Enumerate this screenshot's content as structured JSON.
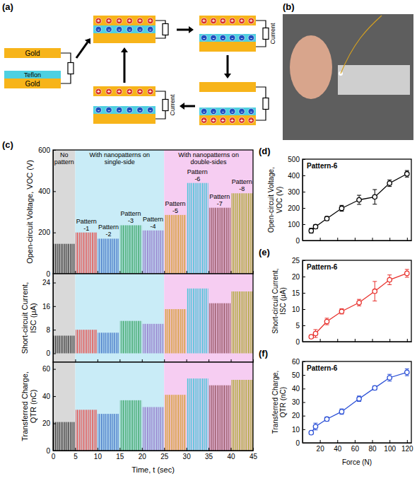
{
  "panel_labels": [
    "(a)",
    "(b)",
    "(c)",
    "(d)",
    "(e)",
    "(f)"
  ],
  "diagram": {
    "gold_label": "Gold",
    "teflon_label": "Teflon",
    "current_label": "Current",
    "positive_sign": "+",
    "negative_sign": "-"
  },
  "chart_data": [
    {
      "type": "bar",
      "y_label": "Open-circuit Voltage, VOC (V)",
      "bins": [
        0,
        5,
        10,
        15,
        20,
        25,
        30,
        35,
        40,
        45
      ],
      "categories": [
        null,
        "Pattern -1",
        "Pattern -2",
        "Pattern -3",
        "Pattern -4",
        "Pattern -5",
        "Pattern -6",
        "Pattern -7",
        "Pattern -8"
      ],
      "values": [
        145,
        200,
        170,
        235,
        210,
        285,
        440,
        320,
        390
      ],
      "colors": [
        "#333333",
        "#e8413c",
        "#3b6fc4",
        "#2ea05a",
        "#8f6fc7",
        "#d39a1f",
        "#33c4d6",
        "#8b4651",
        "#a6a51f"
      ],
      "regions": [
        {
          "label": "No pattern",
          "x": [
            0,
            5
          ],
          "color": "#d9d9d9"
        },
        {
          "label": "With nanopatterns on single-side",
          "x": [
            5,
            25
          ],
          "color": "#c9ecf7"
        },
        {
          "label": "With nanopatterns on double-sides",
          "x": [
            25,
            45
          ],
          "color": "#f6cdf2"
        }
      ],
      "xlim": [
        0,
        45
      ],
      "ylim": [
        0,
        600
      ],
      "xticks": [
        0,
        5,
        10,
        15,
        20,
        25,
        30,
        35,
        40,
        45
      ],
      "yticks": [
        0,
        200,
        400,
        600
      ],
      "tick_labels": "y"
    },
    {
      "type": "bar",
      "y_label": "Short-circuit Current, ISC (μA)",
      "bins": [
        0,
        5,
        10,
        15,
        20,
        25,
        30,
        35,
        40,
        45
      ],
      "values": [
        6,
        8,
        7,
        11,
        10,
        15,
        22,
        17,
        21
      ],
      "colors": [
        "#333333",
        "#e8413c",
        "#3b6fc4",
        "#2ea05a",
        "#8f6fc7",
        "#d39a1f",
        "#33c4d6",
        "#8b4651",
        "#a6a51f"
      ],
      "regions": [
        {
          "x": [
            0,
            5
          ],
          "color": "#d9d9d9"
        },
        {
          "x": [
            5,
            25
          ],
          "color": "#c9ecf7"
        },
        {
          "x": [
            25,
            45
          ],
          "color": "#f6cdf2"
        }
      ],
      "xlim": [
        0,
        45
      ],
      "ylim": [
        -3,
        27
      ],
      "xticks": [
        0,
        5,
        10,
        15,
        20,
        25,
        30,
        35,
        40,
        45
      ],
      "yticks": [
        0,
        8,
        16,
        24
      ],
      "tick_labels": "y"
    },
    {
      "type": "bar",
      "y_label": "Transferred Charge, QTR (nC)",
      "x_label": "Time, t (sec)",
      "bins": [
        0,
        5,
        10,
        15,
        20,
        25,
        30,
        35,
        40,
        45
      ],
      "values": [
        21,
        30,
        27,
        37,
        32,
        41,
        53,
        48,
        52
      ],
      "colors": [
        "#333333",
        "#e8413c",
        "#3b6fc4",
        "#2ea05a",
        "#8f6fc7",
        "#d39a1f",
        "#33c4d6",
        "#8b4651",
        "#a6a51f"
      ],
      "regions": [
        {
          "x": [
            0,
            5
          ],
          "color": "#d9d9d9"
        },
        {
          "x": [
            5,
            25
          ],
          "color": "#c9ecf7"
        },
        {
          "x": [
            25,
            45
          ],
          "color": "#f6cdf2"
        }
      ],
      "xlim": [
        0,
        45
      ],
      "ylim": [
        0,
        65
      ],
      "xticks": [
        0,
        5,
        10,
        15,
        20,
        25,
        30,
        35,
        40,
        45
      ],
      "yticks": [
        0,
        20,
        40,
        60
      ]
    },
    {
      "type": "line",
      "title": "Pattern-6",
      "y_label": "Open-circuit Voltage, VOC (V)",
      "x": [
        10,
        15,
        28,
        45,
        65,
        83,
        100,
        120
      ],
      "values": [
        60,
        85,
        135,
        198,
        250,
        268,
        352,
        410
      ],
      "errors": [
        15,
        12,
        12,
        18,
        28,
        45,
        20,
        20
      ],
      "color": "#000000",
      "marker": "circle",
      "line_style": "solid",
      "xlim": [
        0,
        125
      ],
      "ylim": [
        0,
        500
      ],
      "xticks": [
        20,
        40,
        60,
        80,
        100,
        120
      ],
      "yticks": [
        0,
        100,
        200,
        300,
        400,
        500
      ],
      "tick_labels": "y"
    },
    {
      "type": "line",
      "title": "Pattern-6",
      "y_label": "Short-circuit Current, ISC (μA)",
      "x": [
        10,
        15,
        28,
        45,
        65,
        83,
        100,
        120
      ],
      "values": [
        1.5,
        2.5,
        6.2,
        9.3,
        12,
        15.5,
        19,
        21
      ],
      "errors": [
        0.5,
        1.2,
        1,
        0.8,
        1,
        3,
        1.5,
        1.2
      ],
      "color": "#e8322e",
      "marker": "circle",
      "line_style": "solid",
      "xlim": [
        0,
        125
      ],
      "ylim": [
        0,
        25
      ],
      "xticks": [
        20,
        40,
        60,
        80,
        100,
        120
      ],
      "yticks": [
        0,
        5,
        10,
        15,
        20,
        25
      ],
      "tick_labels": "y"
    },
    {
      "type": "line",
      "title": "Pattern-6",
      "y_label": "Transferred Charge, QTR (nC)",
      "x_label": "Force (N)",
      "x": [
        10,
        15,
        28,
        45,
        65,
        83,
        100,
        120
      ],
      "values": [
        7.5,
        12,
        17.5,
        23,
        32.5,
        40.5,
        48,
        52
      ],
      "errors": [
        1,
        2.5,
        1.5,
        2,
        2,
        1.5,
        2.5,
        2.5
      ],
      "color": "#2a4fd6",
      "marker": "circle",
      "line_style": "solid",
      "xlim": [
        0,
        125
      ],
      "ylim": [
        0,
        60
      ],
      "xticks": [
        20,
        40,
        60,
        80,
        100,
        120
      ],
      "yticks": [
        0,
        10,
        20,
        30,
        40,
        50,
        60
      ]
    }
  ]
}
